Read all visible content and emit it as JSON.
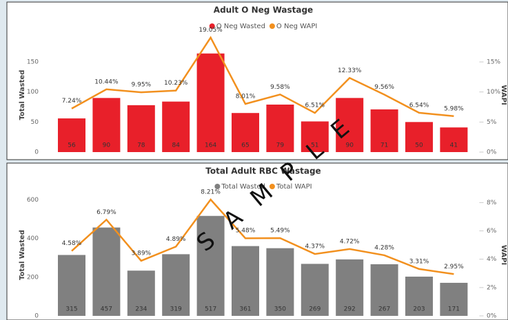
{
  "chart_data": [
    {
      "type": "combo",
      "title": "Adult O Neg Wastage",
      "categories": [
        null,
        null,
        null,
        null,
        null,
        null,
        null,
        null,
        null,
        null,
        null,
        null
      ],
      "y_label": "Total Wasted",
      "y2_label": "WAPI",
      "ylim": [
        0,
        190
      ],
      "yticks": [
        0,
        50,
        100,
        150
      ],
      "y2lim": [
        0,
        19
      ],
      "y2ticks": [
        {
          "value": 0,
          "label": "0%"
        },
        {
          "value": 5,
          "label": "5%"
        },
        {
          "value": 10,
          "label": "10%"
        },
        {
          "value": 15,
          "label": "15%"
        }
      ],
      "grid": false,
      "legend": "top",
      "series": [
        {
          "name": "O Neg Wasted",
          "color": "#e8202a",
          "type": "bar",
          "values": [
            56,
            90,
            78,
            84,
            164,
            65,
            79,
            51,
            90,
            71,
            50,
            41
          ]
        },
        {
          "name": "O Neg WAPI",
          "color": "#f2901e",
          "type": "line",
          "axis": "y2",
          "values": [
            7.24,
            10.44,
            9.95,
            10.23,
            19.05,
            8.01,
            9.58,
            6.51,
            12.33,
            9.56,
            6.54,
            5.98
          ],
          "value_labels": [
            "7.24%",
            "10.44%",
            "9.95%",
            "10.23%",
            "19.05%",
            "8.01%",
            "9.58%",
            "6.51%",
            "12.33%",
            "9.56%",
            "6.54%",
            "5.98%"
          ]
        }
      ]
    },
    {
      "type": "combo",
      "title": "Total Adult RBC Wastage",
      "categories": [
        null,
        null,
        null,
        null,
        null,
        null,
        null,
        null,
        null,
        null,
        null,
        null
      ],
      "y_label": "Total Wasted",
      "y2_label": "WAPI",
      "ylim": [
        0,
        630
      ],
      "yticks": [
        0,
        200,
        400,
        600
      ],
      "y2lim": [
        0,
        8.6
      ],
      "y2ticks": [
        {
          "value": 0,
          "label": "0%"
        },
        {
          "value": 2,
          "label": "2%"
        },
        {
          "value": 4,
          "label": "4%"
        },
        {
          "value": 6,
          "label": "6%"
        },
        {
          "value": 8,
          "label": "8%"
        }
      ],
      "grid": false,
      "legend": "top",
      "series": [
        {
          "name": "Total Wasted",
          "color": "#808080",
          "type": "bar",
          "values": [
            315,
            457,
            234,
            319,
            517,
            361,
            350,
            269,
            292,
            267,
            203,
            171
          ]
        },
        {
          "name": "Total WAPI",
          "color": "#f2901e",
          "type": "line",
          "axis": "y2",
          "values": [
            4.58,
            6.79,
            3.89,
            4.89,
            8.21,
            5.48,
            5.49,
            4.37,
            4.72,
            4.28,
            3.31,
            2.95
          ],
          "value_labels": [
            "4.58%",
            "6.79%",
            "3.89%",
            "4.89%",
            "8.21%",
            "5.48%",
            "5.49%",
            "4.37%",
            "4.72%",
            "4.28%",
            "3.31%",
            "2.95%"
          ]
        }
      ]
    }
  ],
  "watermark": "SAMPLE"
}
